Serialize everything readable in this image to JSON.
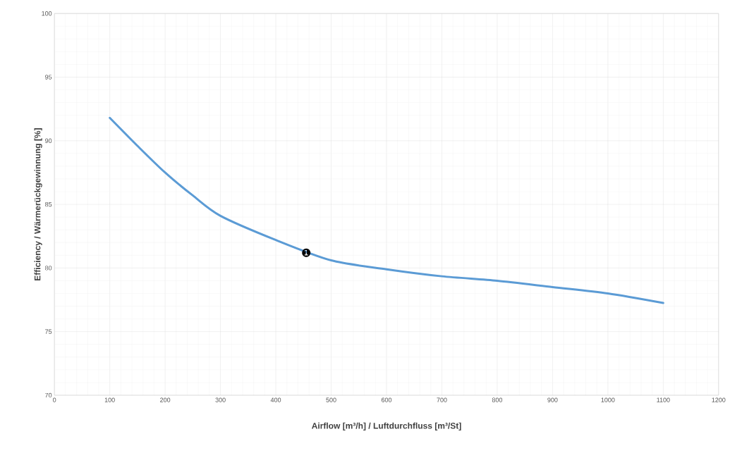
{
  "chart_data": {
    "type": "line",
    "xlabel": "Airflow [m³/h] / Luftdurchfluss [m³/St]",
    "ylabel": "Efficiency / Wärmerückgewinnung [%]",
    "x": [
      100,
      150,
      200,
      250,
      300,
      400,
      500,
      600,
      700,
      800,
      900,
      1000,
      1100
    ],
    "series": [
      {
        "color": "#5b9bd5",
        "values": [
          91.8,
          89.6,
          87.5,
          85.7,
          84.1,
          82.2,
          80.6,
          79.9,
          79.35,
          79.0,
          78.5,
          78.0,
          77.25
        ]
      }
    ],
    "xlim": [
      0,
      1200
    ],
    "ylim": [
      70,
      100
    ],
    "xticks": [
      0,
      100,
      200,
      300,
      400,
      500,
      600,
      700,
      800,
      900,
      1000,
      1100,
      1200
    ],
    "yticks": [
      70,
      75,
      80,
      85,
      90,
      95,
      100
    ],
    "grid": true,
    "marker": "none",
    "line_style": "solid",
    "annotations": [
      {
        "text": "❶",
        "x": 455,
        "y": 81.2
      }
    ]
  }
}
